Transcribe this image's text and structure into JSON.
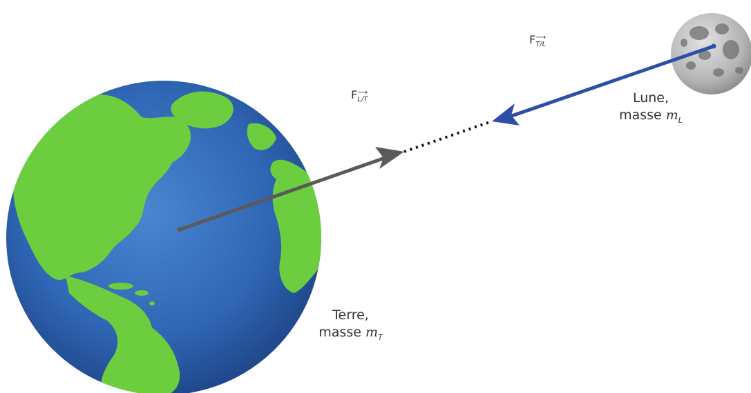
{
  "labels": {
    "earth_name": "Terre,",
    "earth_mass_word": "masse",
    "earth_mass_symbol": "m",
    "earth_mass_sub": "T",
    "moon_name": "Lune,",
    "moon_mass_word": "masse",
    "moon_mass_symbol": "m",
    "moon_mass_sub": "L",
    "force_earth": "F",
    "force_earth_sub": "L/T",
    "force_moon": "F",
    "force_moon_sub": "T/L"
  },
  "colors": {
    "earth_ocean": "#2f66b5",
    "earth_land": "#6ccd3e",
    "moon": "#b4b4b4",
    "force_on_earth_arrow": "#5a5a5a",
    "force_on_moon_arrow": "#2e4fa6"
  }
}
